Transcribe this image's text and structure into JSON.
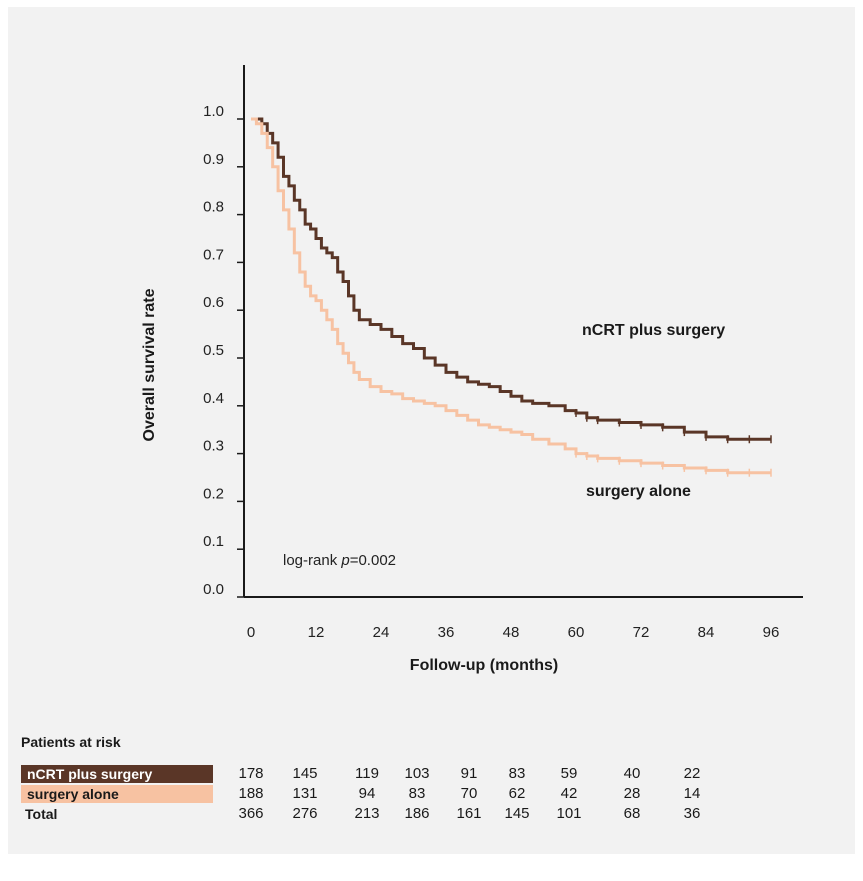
{
  "colors": {
    "ncrt": "#5a3627",
    "surgery": "#f7c2a2",
    "axis": "#1a1a1a",
    "background": "#f2f2f2"
  },
  "annotation": {
    "prefix": "log-rank ",
    "p_symbol": "p",
    "value": "=0.002"
  },
  "chart_data": {
    "type": "line",
    "title": "",
    "xlabel": "Follow-up (months)",
    "ylabel": "Overall survival rate",
    "xlim": [
      0,
      96
    ],
    "ylim": [
      0,
      1.0
    ],
    "x_ticks": [
      0,
      12,
      24,
      36,
      48,
      60,
      72,
      84,
      96
    ],
    "y_ticks": [
      {
        "value": 0.0,
        "label": "0.0"
      },
      {
        "value": 0.1,
        "label": "0.1"
      },
      {
        "value": 0.2,
        "label": "0.2"
      },
      {
        "value": 0.3,
        "label": "0.3"
      },
      {
        "value": 0.4,
        "label": "0.4"
      },
      {
        "value": 0.5,
        "label": "0.5"
      },
      {
        "value": 0.6,
        "label": "0.6"
      },
      {
        "value": 0.7,
        "label": "0.7"
      },
      {
        "value": 0.8,
        "label": "0.8"
      },
      {
        "value": 0.9,
        "label": "0.9"
      },
      {
        "value": 1.0,
        "label": "1.0"
      }
    ],
    "grid": false,
    "series": [
      {
        "name": "nCRT plus surgery",
        "key": "ncrt",
        "x": [
          0,
          1,
          2,
          3,
          4,
          5,
          6,
          7,
          8,
          9,
          10,
          11,
          12,
          13,
          14,
          15,
          16,
          17,
          18,
          19,
          20,
          22,
          24,
          26,
          28,
          30,
          32,
          34,
          36,
          38,
          40,
          42,
          44,
          46,
          48,
          50,
          52,
          55,
          58,
          60,
          62,
          64,
          68,
          72,
          76,
          80,
          84,
          88,
          92,
          96
        ],
        "y": [
          1.0,
          1.0,
          0.99,
          0.97,
          0.95,
          0.92,
          0.88,
          0.86,
          0.83,
          0.81,
          0.78,
          0.77,
          0.75,
          0.73,
          0.72,
          0.71,
          0.68,
          0.66,
          0.63,
          0.6,
          0.58,
          0.57,
          0.56,
          0.545,
          0.53,
          0.52,
          0.5,
          0.485,
          0.47,
          0.46,
          0.45,
          0.445,
          0.44,
          0.43,
          0.42,
          0.41,
          0.405,
          0.4,
          0.39,
          0.385,
          0.375,
          0.37,
          0.365,
          0.36,
          0.355,
          0.345,
          0.335,
          0.33,
          0.33,
          0.33
        ],
        "end_label": "nCRT plus surgery"
      },
      {
        "name": "surgery alone",
        "key": "surgery",
        "x": [
          0,
          1,
          2,
          3,
          4,
          5,
          6,
          7,
          8,
          9,
          10,
          11,
          12,
          13,
          14,
          15,
          16,
          17,
          18,
          19,
          20,
          22,
          24,
          26,
          28,
          30,
          32,
          34,
          36,
          38,
          40,
          42,
          44,
          46,
          48,
          50,
          52,
          55,
          58,
          60,
          62,
          64,
          68,
          72,
          76,
          80,
          84,
          88,
          92,
          96
        ],
        "y": [
          1.0,
          0.99,
          0.97,
          0.94,
          0.9,
          0.85,
          0.81,
          0.77,
          0.72,
          0.68,
          0.65,
          0.63,
          0.62,
          0.6,
          0.58,
          0.56,
          0.53,
          0.51,
          0.49,
          0.47,
          0.455,
          0.44,
          0.43,
          0.425,
          0.415,
          0.41,
          0.405,
          0.4,
          0.39,
          0.38,
          0.37,
          0.36,
          0.355,
          0.35,
          0.345,
          0.34,
          0.33,
          0.32,
          0.31,
          0.3,
          0.295,
          0.29,
          0.285,
          0.28,
          0.275,
          0.27,
          0.265,
          0.26,
          0.26,
          0.26
        ],
        "end_label": "surgery alone"
      }
    ]
  },
  "risk_table": {
    "title": "Patients at risk",
    "rows": [
      {
        "key": "ncrt",
        "label": "nCRT plus surgery",
        "values": [
          "178",
          "145",
          "119",
          "103",
          "91",
          "83",
          "59",
          "40",
          "22"
        ]
      },
      {
        "key": "surg",
        "label": "surgery alone",
        "values": [
          "188",
          "131",
          "94",
          "83",
          "70",
          "62",
          "42",
          "28",
          "14"
        ]
      },
      {
        "key": "total",
        "label": "Total",
        "values": [
          "366",
          "276",
          "213",
          "186",
          "161",
          "145",
          "101",
          "68",
          "36"
        ]
      }
    ]
  }
}
